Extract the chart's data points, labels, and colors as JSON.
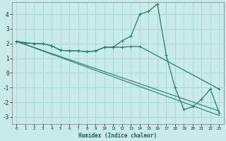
{
  "xlabel": "Humidex (Indice chaleur)",
  "background_color": "#c8ece8",
  "grid_color": "#a8d8d0",
  "line_color": "#2a7a6a",
  "xlim": [
    -0.5,
    23.5
  ],
  "ylim": [
    -3.5,
    4.8
  ],
  "yticks": [
    -3,
    -2,
    -1,
    0,
    1,
    2,
    3,
    4
  ],
  "xticks": [
    0,
    1,
    2,
    3,
    4,
    5,
    6,
    7,
    8,
    9,
    10,
    11,
    12,
    13,
    14,
    15,
    16,
    17,
    18,
    19,
    20,
    21,
    22,
    23
  ],
  "series1_x": [
    0,
    1,
    2,
    3,
    4,
    5,
    6,
    7,
    8,
    9,
    10,
    11,
    12,
    13,
    14,
    15,
    16,
    17,
    18,
    19,
    20,
    21,
    22,
    23
  ],
  "series1_y": [
    2.15,
    2.05,
    2.0,
    2.0,
    1.85,
    1.55,
    1.5,
    1.5,
    1.45,
    1.5,
    1.75,
    1.75,
    2.2,
    2.5,
    4.0,
    4.2,
    4.7,
    1.2,
    -1.0,
    -2.5,
    -2.3,
    -1.8,
    -1.1,
    -2.7
  ],
  "series2_x": [
    0,
    1,
    2,
    3,
    4,
    5,
    6,
    7,
    8,
    9,
    10,
    11,
    12,
    13,
    14,
    23
  ],
  "series2_y": [
    2.15,
    2.05,
    2.0,
    2.0,
    1.85,
    1.55,
    1.5,
    1.5,
    1.45,
    1.5,
    1.75,
    1.75,
    1.75,
    1.8,
    1.8,
    -1.1
  ],
  "line3_x": [
    0,
    23
  ],
  "line3_y": [
    2.15,
    -2.6
  ],
  "line4_x": [
    0,
    23
  ],
  "line4_y": [
    2.15,
    -2.9
  ]
}
